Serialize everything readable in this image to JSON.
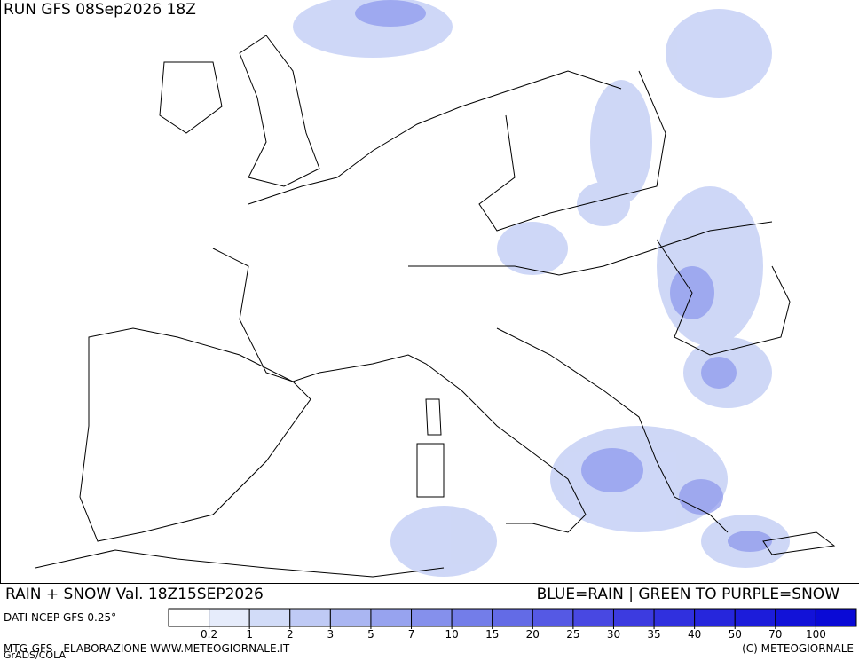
{
  "header": {
    "run": "RUN GFS 08Sep2026 18Z"
  },
  "caption": {
    "left": "RAIN + SNOW Val. 18Z15SEP2026",
    "right": "BLUE=RAIN | GREEN TO PURPLE=SNOW"
  },
  "colorbar": {
    "source": "DATI NCEP GFS 0.25°",
    "levels": [
      0.2,
      1,
      2,
      3,
      5,
      7,
      10,
      15,
      20,
      25,
      30,
      35,
      40,
      50,
      70,
      100
    ],
    "colors": [
      "#ffffff",
      "#e6ecfb",
      "#d2dcf8",
      "#bfcaf5",
      "#aab6f2",
      "#97a3ef",
      "#8590ec",
      "#737de9",
      "#636be6",
      "#5559e4",
      "#4848e2",
      "#3c3be0",
      "#3030de",
      "#2626dc",
      "#1c1cda",
      "#1212d8",
      "#0a0ad6"
    ]
  },
  "footer": {
    "left": "MTG-GFS - ELABORAZIONE WWW.METEOGIORNALE.IT",
    "credit": "GrADS/COLA",
    "right": "(C) METEOGIORNALE"
  }
}
